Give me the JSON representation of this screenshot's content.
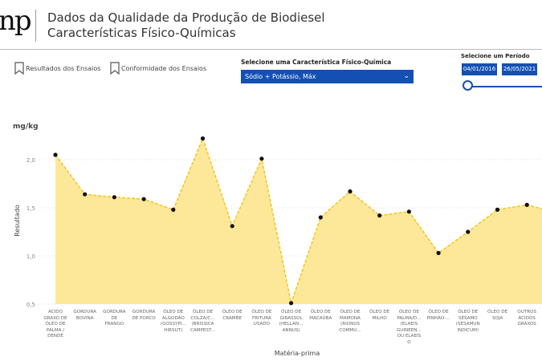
{
  "header": {
    "logo_text": "anp",
    "title_line1": "Dados da Qualidade da Produção de Biodiesel",
    "title_line2": "Características Físico-Químicas"
  },
  "nav": {
    "bookmarks": [
      {
        "label": "Resultados dos Ensaios",
        "icon": "bookmark-icon"
      },
      {
        "label": "Conformidade dos Ensaios",
        "icon": "bookmark-icon"
      }
    ]
  },
  "filters": {
    "characteristic_label": "Selecione uma Característica Físico-Química",
    "characteristic_value": "Sódio + Potássio, Máx",
    "period_label": "Selecione um Período",
    "start_date": "04/01/2016",
    "end_date": "26/05/2021"
  },
  "colors": {
    "accent": "#1450b4",
    "area": "#fde89a",
    "line": "#f5c518",
    "point": "#111111"
  },
  "chart_data": {
    "type": "area",
    "unit": "mg/kg",
    "ylabel": "Resultado",
    "xlabel": "Matéria-prima",
    "ylim": [
      0.5,
      2.3
    ],
    "yticks": [
      "0,5",
      "1,0",
      "1,5",
      "2,0"
    ],
    "grid": true,
    "categories": [
      "ÁCIDO\nGRAXO DE\nÓLEO DE\nPALMA /\nDENDÊ",
      "GORDURA\nBOVINA",
      "GORDURA\nDE\nFRANGO",
      "GORDURA\nDE PORCO",
      "ÓLEO DE\nALGODÃO\n(GOSSYPI...\nHIRSUT)",
      "ÓLEO DE\nCOLZA/C...\n(BRISSICA\nCAMPEST...",
      "ÓLEO DE\nCRAMBE",
      "ÓLEO DE\nFRITURA\nUSADO",
      "ÓLEO DE\nGIRASSOL\n(HELLAN...\nANNUS)",
      "ÓLEO DE\nMACAÚBA",
      "ÓLEO DE\nMAMONA\n(RIONUS\nCOMMU...",
      "ÓLEO DE\nMILHO",
      "ÓLEO DE\nPALMA/D...\n(ELAEIS\nGUINEEN...\nOU ELAEIS\nO",
      "ÓLEO DE\nPINHÃO-...",
      "ÓLEO DE\nSÉSAMO\n(SESAMUN\nINDICUM)",
      "ÓLEO DE\nSOJA",
      "OUTROS\nÁCIDOS\nGRAXOS"
    ],
    "values": [
      2.05,
      1.64,
      1.61,
      1.59,
      1.48,
      2.22,
      1.31,
      2.01,
      0.51,
      1.4,
      1.67,
      1.42,
      1.46,
      1.03,
      1.25,
      1.48,
      1.53
    ]
  }
}
